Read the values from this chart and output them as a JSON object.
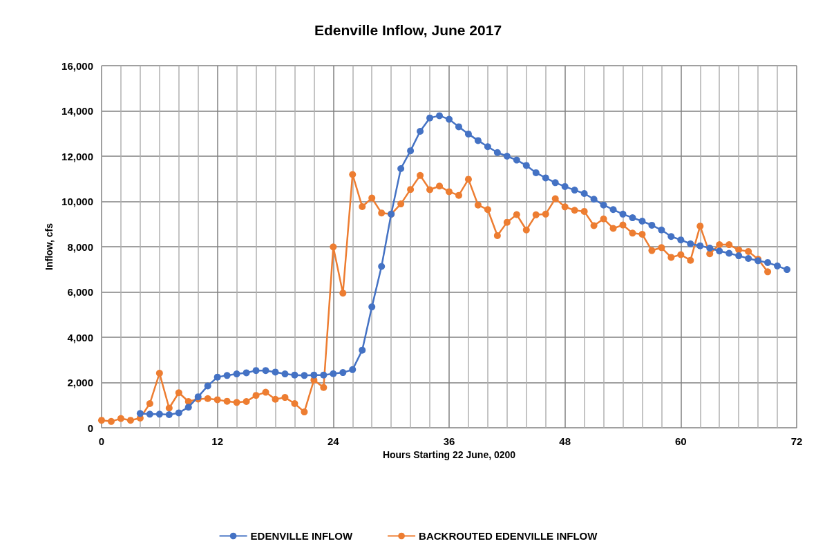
{
  "chart_data": {
    "type": "line",
    "title": "Edenville Inflow, June 2017",
    "xlabel": "Hours Starting 22 June, 0200",
    "ylabel": "Inflow, cfs",
    "xlim": [
      0,
      72
    ],
    "xticks": [
      0,
      12,
      24,
      36,
      48,
      60,
      72
    ],
    "ylim": [
      0,
      16000
    ],
    "yticks": [
      {
        "value": 0,
        "label": "0"
      },
      {
        "value": 2000,
        "label": "2,000"
      },
      {
        "value": 4000,
        "label": "4,000"
      },
      {
        "value": 6000,
        "label": "6,000"
      },
      {
        "value": 8000,
        "label": "8,000"
      },
      {
        "value": 10000,
        "label": "10,000"
      },
      {
        "value": 12000,
        "label": "12,000"
      },
      {
        "value": 14000,
        "label": "14,000"
      },
      {
        "value": 16000,
        "label": "16,000"
      }
    ],
    "grid": true,
    "legend": "bottom",
    "marker": "circle",
    "line_style": "solid",
    "series": [
      {
        "name": "EDENVILLE INFLOW",
        "color": "#4472c4",
        "x": [
          4,
          5,
          6,
          7,
          8,
          9,
          10,
          11,
          12,
          13,
          14,
          15,
          16,
          17,
          18,
          19,
          20,
          21,
          22,
          23,
          24,
          25,
          26,
          27,
          28,
          29,
          30,
          31,
          32,
          33,
          34,
          35,
          36,
          37,
          38,
          39,
          40,
          41,
          42,
          43,
          44,
          45,
          46,
          47,
          48,
          49,
          50,
          51,
          52,
          53,
          54,
          55,
          56,
          57,
          58,
          59,
          60,
          61,
          62,
          63,
          64,
          65,
          66,
          67,
          68,
          69,
          70,
          71
        ],
        "values": [
          630,
          600,
          600,
          580,
          660,
          910,
          1370,
          1850,
          2240,
          2310,
          2380,
          2430,
          2530,
          2530,
          2460,
          2380,
          2330,
          2310,
          2330,
          2330,
          2390,
          2440,
          2570,
          3430,
          5340,
          7130,
          9440,
          11450,
          12240,
          13100,
          13690,
          13790,
          13630,
          13300,
          12980,
          12690,
          12420,
          12160,
          12000,
          11830,
          11590,
          11270,
          11040,
          10830,
          10660,
          10500,
          10350,
          10100,
          9840,
          9640,
          9440,
          9280,
          9130,
          8950,
          8740,
          8450,
          8300,
          8130,
          8040,
          7940,
          7810,
          7710,
          7600,
          7480,
          7380,
          7300,
          7150,
          6990
        ]
      },
      {
        "name": "BACKROUTED EDENVILLE INFLOW",
        "color": "#ed7d31",
        "x": [
          0,
          1,
          2,
          3,
          4,
          5,
          6,
          7,
          8,
          9,
          10,
          11,
          12,
          13,
          14,
          15,
          16,
          17,
          18,
          19,
          20,
          21,
          22,
          23,
          24,
          25,
          26,
          27,
          28,
          29,
          30,
          31,
          32,
          33,
          34,
          35,
          36,
          37,
          38,
          39,
          40,
          41,
          42,
          43,
          44,
          45,
          46,
          47,
          48,
          49,
          50,
          51,
          52,
          53,
          54,
          55,
          56,
          57,
          58,
          59,
          60,
          61,
          62,
          63,
          64,
          65,
          66,
          67,
          68,
          69
        ],
        "values": [
          330,
          280,
          410,
          330,
          430,
          1070,
          2410,
          870,
          1550,
          1160,
          1270,
          1290,
          1240,
          1170,
          1120,
          1160,
          1430,
          1570,
          1260,
          1340,
          1070,
          700,
          2110,
          1780,
          7990,
          5950,
          11190,
          9770,
          10150,
          9490,
          9440,
          9890,
          10530,
          11150,
          10520,
          10680,
          10430,
          10270,
          10980,
          9840,
          9640,
          8490,
          9080,
          9420,
          8740,
          9410,
          9440,
          10120,
          9760,
          9610,
          9560,
          8930,
          9230,
          8810,
          8960,
          8600,
          8550,
          7830,
          7960,
          7530,
          7650,
          7400,
          8910,
          7690,
          8090,
          8090,
          7860,
          7790,
          7450,
          6890
        ]
      }
    ]
  }
}
